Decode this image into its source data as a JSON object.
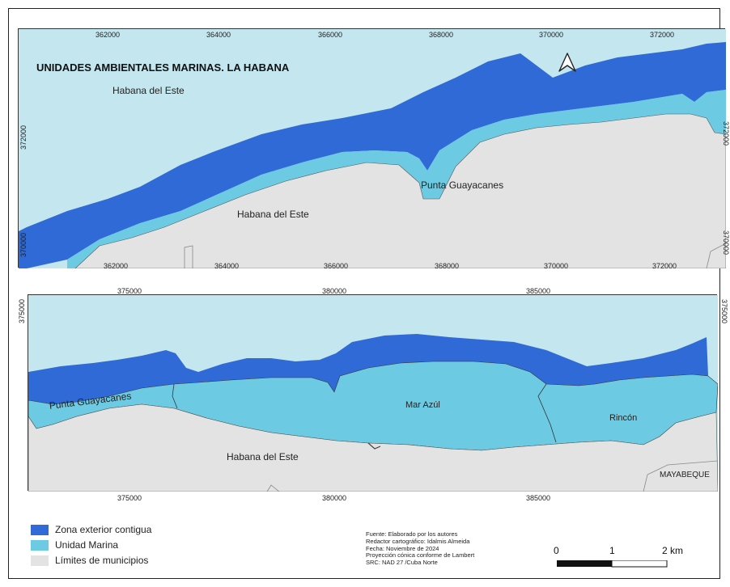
{
  "map": {
    "title": "UNIDADES AMBIENTALES MARINAS. LA HABANA",
    "colors": {
      "sea": "#c3e6ef",
      "exterior": "#2f6ad6",
      "marina": "#6ccbe3",
      "land": "#e2e3e2",
      "outline": "#333333"
    },
    "top_panel": {
      "x_ticks": [
        "362000",
        "364000",
        "366000",
        "368000",
        "370000",
        "372000"
      ],
      "y_ticks": [
        "372000",
        "370000"
      ],
      "labels": {
        "sea_label": "Habana del Este",
        "land_label": "Habana del Este",
        "point_label": "Punta Guayacanes"
      },
      "north_arrow": "north-arrow-icon"
    },
    "bottom_panel": {
      "x_ticks": [
        "375000",
        "380000",
        "385000"
      ],
      "y_ticks": [
        "375000"
      ],
      "labels": {
        "point_label": "Punta Guayacanes",
        "mar_azul": "Mar Azúl",
        "rincon": "Rincón",
        "land_label": "Habana del Este",
        "mayabeque": "MAYABEQUE"
      }
    }
  },
  "legend": {
    "items": [
      {
        "label": "Zona exterior contigua",
        "color": "#2f6ad6"
      },
      {
        "label": "Unidad Marina",
        "color": "#6ccbe3"
      },
      {
        "label": "Límites de municipios",
        "color": "#e2e3e2"
      }
    ]
  },
  "source": {
    "line1": "Fuente: Elaborado por los autores",
    "line2": "Redactor cartográfico: Idalmis Almeida",
    "line3": "Fecha: Noviembre de 2024",
    "line4": "Proyección cónica conforme de Lambert",
    "line5": "SRC: NAD 27 /Cuba Norte"
  },
  "scale_bar": {
    "label_0": "0",
    "label_1": "1",
    "label_2": "2 km"
  }
}
